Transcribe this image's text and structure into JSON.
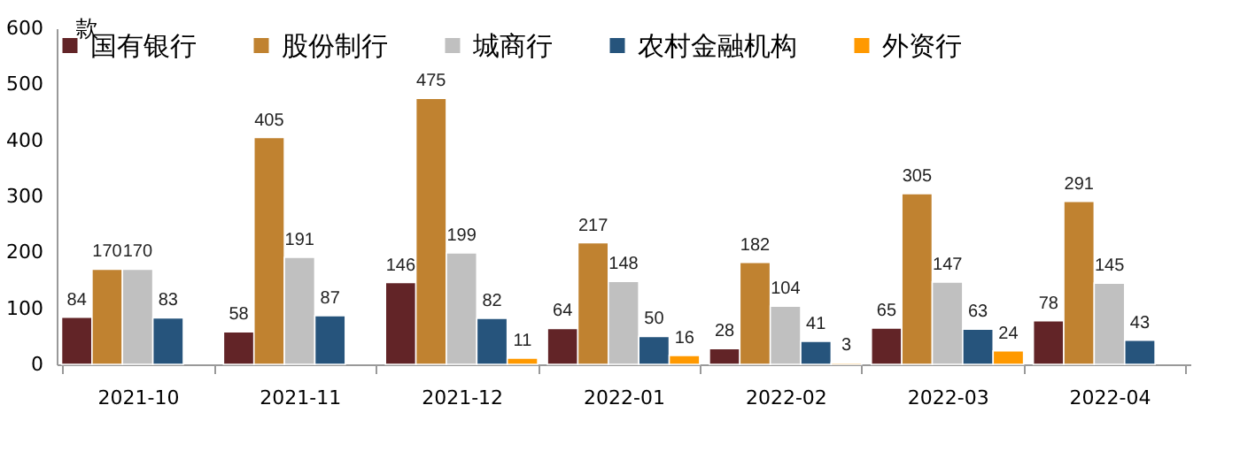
{
  "chart_data": {
    "type": "bar",
    "ylabel": "款",
    "categories": [
      "2021-10",
      "2021-11",
      "2021-12",
      "2022-01",
      "2022-02",
      "2022-03",
      "2022-04"
    ],
    "series": [
      {
        "name": "国有银行",
        "color": "#622427",
        "values": [
          84,
          58,
          146,
          64,
          28,
          65,
          78
        ]
      },
      {
        "name": "股份制行",
        "color": "#c08230",
        "values": [
          170,
          405,
          475,
          217,
          182,
          305,
          291
        ]
      },
      {
        "name": "城商行",
        "color": "#c0c0c0",
        "values": [
          170,
          191,
          199,
          148,
          104,
          147,
          145
        ]
      },
      {
        "name": "农村金融机构",
        "color": "#26547c",
        "values": [
          83,
          87,
          82,
          50,
          41,
          63,
          43
        ]
      },
      {
        "name": "外资行",
        "color": "#ff9900",
        "values": [
          null,
          null,
          11,
          16,
          3,
          24,
          null
        ]
      }
    ],
    "ylim": [
      0,
      600
    ],
    "yticks": [
      0,
      100,
      200,
      300,
      400,
      500,
      600
    ],
    "grid": false,
    "legend": "top",
    "data_labels": true
  }
}
